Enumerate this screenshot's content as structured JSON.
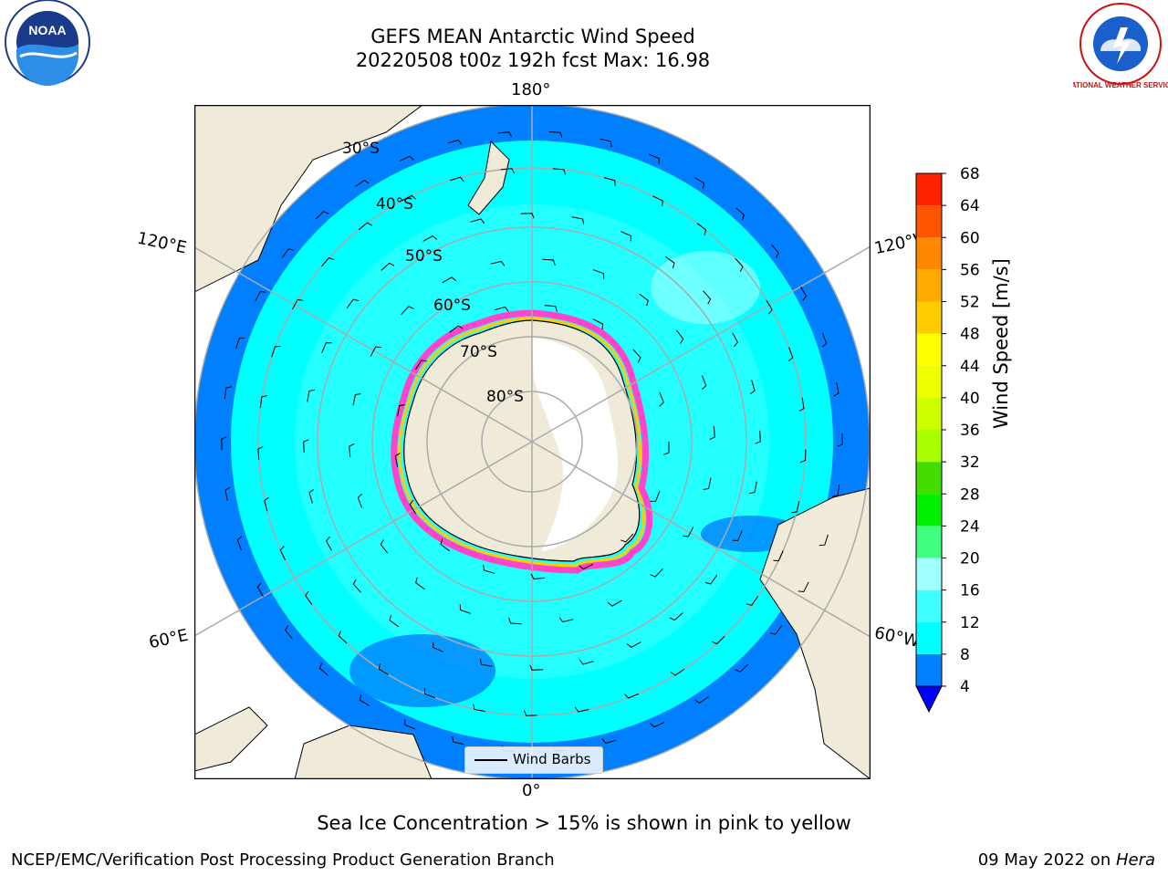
{
  "title": {
    "line1": "GEFS MEAN Antarctic Wind Speed",
    "line2": "20220508 t00z 192h fcst   Max: 16.98"
  },
  "map": {
    "projection": "south-polar-stereographic",
    "lon_labels": {
      "top": "180°",
      "bottom": "0°",
      "upper_left": "120°E",
      "upper_right": "120°W",
      "lower_left": "60°E",
      "lower_right": "60°W"
    },
    "lat_labels": [
      "30°S",
      "40°S",
      "50°S",
      "60°S",
      "70°S",
      "80°S"
    ],
    "legend_label": "Wind Barbs"
  },
  "colorbar": {
    "label": "Wind Speed [m/s]",
    "ticks": [
      "4",
      "8",
      "12",
      "16",
      "20",
      "24",
      "28",
      "32",
      "36",
      "40",
      "44",
      "48",
      "52",
      "56",
      "60",
      "64",
      "68"
    ],
    "colors": [
      "#0080ff",
      "#00ffff",
      "#40ffff",
      "#a0ffff",
      "#40ff80",
      "#00ee00",
      "#44dd00",
      "#aaff00",
      "#ccff00",
      "#eeff00",
      "#ffff00",
      "#ffcc00",
      "#ffaa00",
      "#ff8800",
      "#ff5500",
      "#ff2200"
    ],
    "under_color": "#0000ff"
  },
  "colors": {
    "land": "#efebd8",
    "ice_sheet": "#ffffff",
    "ocean_low": "#0080ff",
    "ocean_mid": "#00ffff",
    "ocean_high": "#66ffff",
    "sea_ice_edge": "#ff44cc",
    "grid": "#aaaaaa"
  },
  "sea_ice_note": "Sea Ice Concentration > 15% is shown in pink to yellow",
  "footer": {
    "left": "NCEP/EMC/Verification Post Processing Product Generation Branch",
    "date": "09 May 2022 on ",
    "machine": "Hera"
  },
  "logos": {
    "noaa": {
      "text": "NOAA"
    },
    "nws": {
      "text": "NATIONAL WEATHER SERVICE"
    }
  }
}
